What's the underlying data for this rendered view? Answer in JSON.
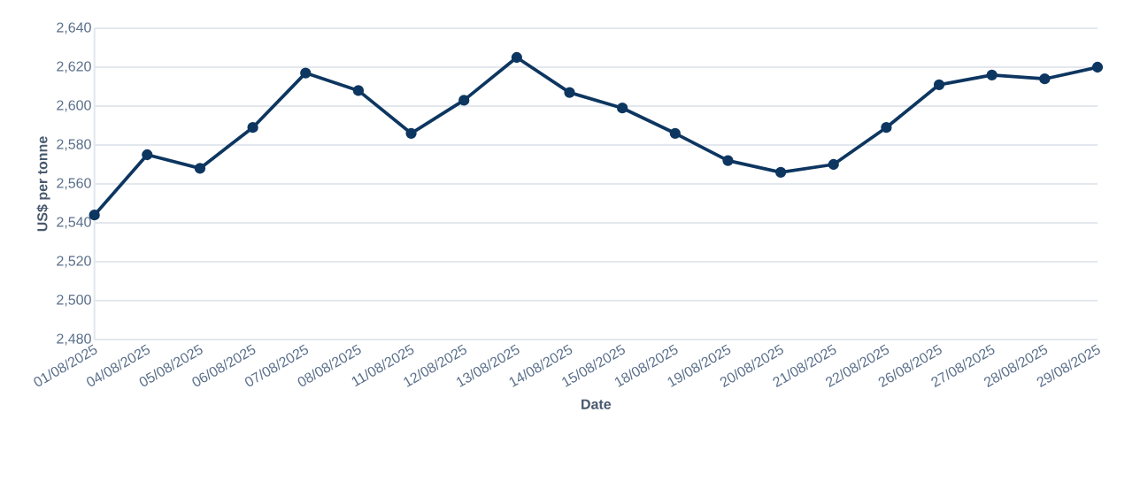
{
  "chart_data": {
    "type": "line",
    "xlabel": "Date",
    "ylabel": "US$ per tonne",
    "categories": [
      "01/08/2025",
      "04/08/2025",
      "05/08/2025",
      "06/08/2025",
      "07/08/2025",
      "08/08/2025",
      "11/08/2025",
      "12/08/2025",
      "13/08/2025",
      "14/08/2025",
      "15/08/2025",
      "18/08/2025",
      "19/08/2025",
      "20/08/2025",
      "21/08/2025",
      "22/08/2025",
      "26/08/2025",
      "27/08/2025",
      "28/08/2025",
      "29/08/2025"
    ],
    "series": [
      {
        "color": "#0d3660",
        "values": [
          2544,
          2575,
          2568,
          2589,
          2617,
          2608,
          2586,
          2603,
          2625,
          2607,
          2599,
          2586,
          2572,
          2566,
          2570,
          2589,
          2611,
          2616,
          2614,
          2620
        ]
      }
    ],
    "ylim": [
      2480,
      2640
    ],
    "yticks": [
      {
        "value": 2480,
        "label": "2,480"
      },
      {
        "value": 2500,
        "label": "2,500"
      },
      {
        "value": 2520,
        "label": "2,520"
      },
      {
        "value": 2540,
        "label": "2,540"
      },
      {
        "value": 2560,
        "label": "2,560"
      },
      {
        "value": 2580,
        "label": "2,580"
      },
      {
        "value": 2600,
        "label": "2,600"
      },
      {
        "value": 2620,
        "label": "2,620"
      },
      {
        "value": 2640,
        "label": "2,640"
      }
    ],
    "grid": "y",
    "marker": "circle",
    "line_style": "solid"
  }
}
